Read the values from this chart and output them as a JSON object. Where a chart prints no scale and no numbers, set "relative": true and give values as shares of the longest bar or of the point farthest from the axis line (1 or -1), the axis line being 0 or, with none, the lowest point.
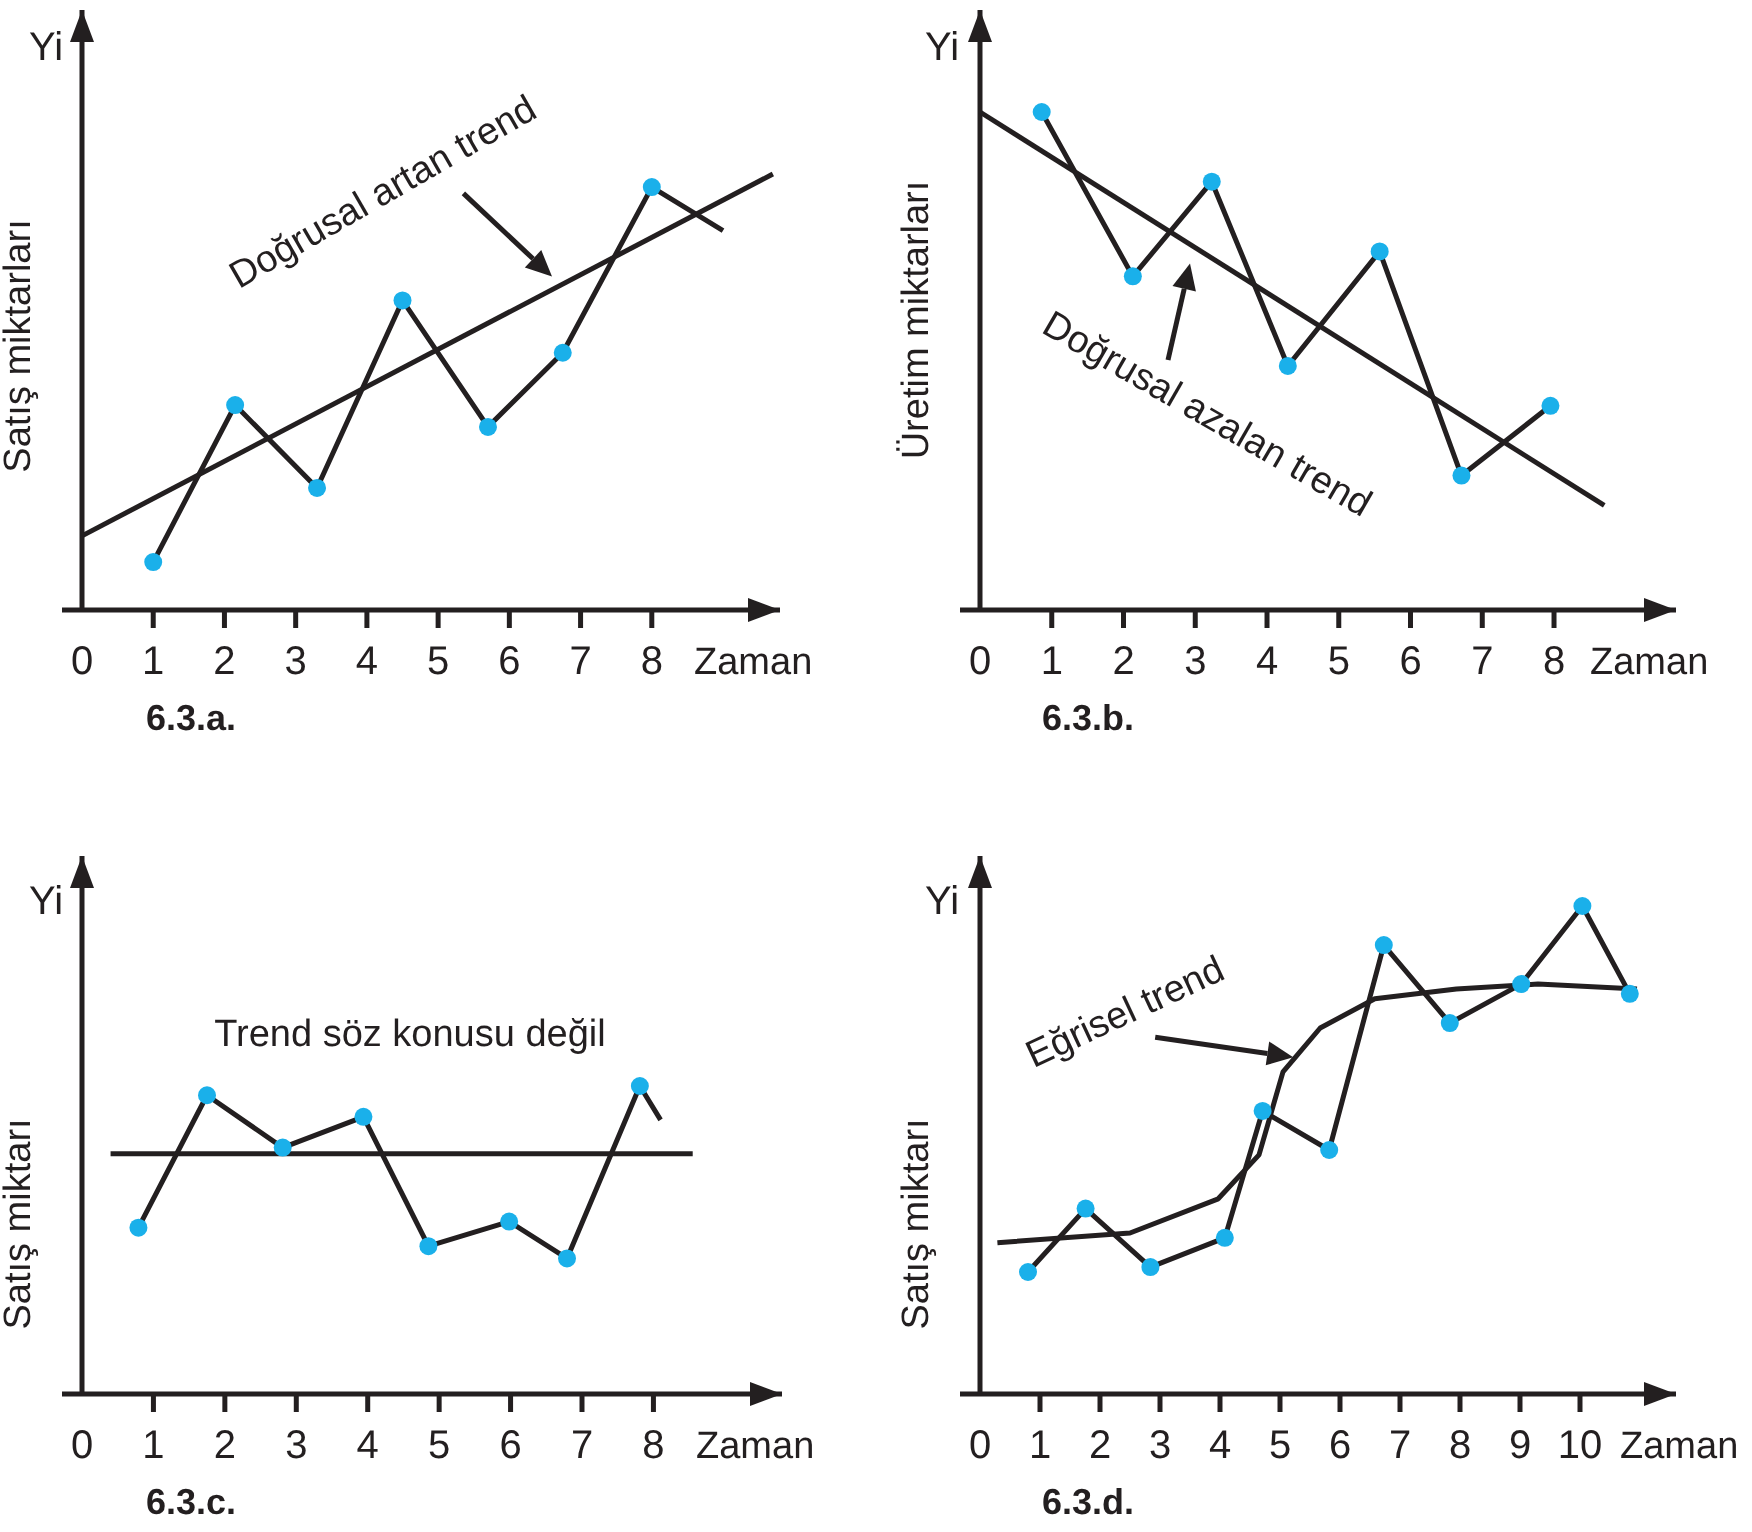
{
  "chart_data": [
    {
      "type": "line",
      "title": "6.3.a.",
      "xlabel": "Zaman",
      "ylabel": "Satış miktarları",
      "annotations": [
        "Yi",
        "Doğrusal artan trend"
      ],
      "relative": true,
      "xlim": [
        0,
        9.8
      ],
      "xticks": [
        0,
        1,
        2,
        3,
        4,
        5,
        6,
        7,
        8
      ],
      "marker": "circle",
      "series": [
        {
          "marker": "none",
          "color": "#231f20",
          "x": [
            1,
            2.15,
            3.3,
            4.5,
            5.7,
            6.75,
            8,
            9
          ],
          "values": [
            0.11,
            0.47,
            0.28,
            0.71,
            0.42,
            0.59,
            0.97,
            0.87
          ]
        },
        {
          "marker": "none",
          "color": "#231f20",
          "x": [
            0,
            9.7
          ],
          "values": [
            0.17,
            1.0
          ]
        },
        {
          "type": "scatter",
          "color": "#1ab0ea",
          "x": [
            1,
            2.15,
            3.3,
            4.5,
            5.7,
            6.75,
            8
          ],
          "values": [
            0.11,
            0.47,
            0.28,
            0.71,
            0.42,
            0.59,
            0.97
          ]
        }
      ]
    },
    {
      "type": "line",
      "title": "6.3.b.",
      "xlabel": "Zaman",
      "ylabel": "Üretim miktarları",
      "annotations": [
        "Yi",
        "Doğrusal azalan trend"
      ],
      "relative": true,
      "xlim": [
        0,
        9.7
      ],
      "xticks": [
        0,
        1,
        2,
        3,
        4,
        5,
        6,
        7,
        8
      ],
      "marker": "circle",
      "series": [
        {
          "marker": "none",
          "color": "#231f20",
          "x": [
            0.86,
            2.13,
            3.23,
            4.29,
            5.57,
            6.71,
            7.95
          ],
          "values": [
            1.0,
            0.67,
            0.86,
            0.49,
            0.72,
            0.27,
            0.41
          ]
        },
        {
          "marker": "none",
          "color": "#231f20",
          "x": [
            0,
            8.7
          ],
          "values": [
            1.0,
            0.21
          ]
        },
        {
          "type": "scatter",
          "color": "#1ab0ea",
          "x": [
            0.86,
            2.13,
            3.23,
            4.29,
            5.57,
            6.71,
            7.95
          ],
          "values": [
            1.0,
            0.67,
            0.86,
            0.49,
            0.72,
            0.27,
            0.41
          ]
        }
      ]
    },
    {
      "type": "line",
      "title": "6.3.c.",
      "xlabel": "Zaman",
      "ylabel": "Satış miktarı",
      "annotations": [
        "Yi",
        "Trend söz konusu değil"
      ],
      "relative": true,
      "xlim": [
        0,
        9.8
      ],
      "xticks": [
        0,
        1,
        2,
        3,
        4,
        5,
        6,
        7,
        8
      ],
      "marker": "circle",
      "series": [
        {
          "marker": "none",
          "color": "#231f20",
          "x": [
            0.79,
            1.75,
            2.81,
            3.94,
            4.85,
            5.98,
            6.79,
            7.81,
            8.1
          ],
          "values": [
            0.54,
            0.97,
            0.8,
            0.9,
            0.48,
            0.56,
            0.44,
            1.0,
            0.89
          ]
        },
        {
          "marker": "none",
          "color": "#231f20",
          "x": [
            0.4,
            8.55
          ],
          "values": [
            0.78,
            0.78
          ]
        },
        {
          "type": "scatter",
          "color": "#1ab0ea",
          "x": [
            0.79,
            1.75,
            2.81,
            3.94,
            4.85,
            5.98,
            6.79,
            7.81
          ],
          "values": [
            0.54,
            0.97,
            0.8,
            0.9,
            0.48,
            0.56,
            0.44,
            1.0
          ]
        }
      ]
    },
    {
      "type": "line",
      "title": "6.3.d.",
      "xlabel": "Zaman",
      "ylabel": "Satış miktarı",
      "annotations": [
        "Yi",
        "Eğrisel trend"
      ],
      "relative": true,
      "xlim": [
        0,
        11.6
      ],
      "xticks": [
        0,
        1,
        2,
        3,
        4,
        5,
        6,
        7,
        8,
        9,
        10
      ],
      "marker": "circle",
      "series": [
        {
          "marker": "none",
          "color": "#231f20",
          "x": [
            0.8,
            1.76,
            2.84,
            4.08,
            4.71,
            5.82,
            6.73,
            7.83,
            9.02,
            10.04,
            10.83
          ],
          "values": [
            0.25,
            0.38,
            0.26,
            0.32,
            0.58,
            0.5,
            0.92,
            0.76,
            0.84,
            1.0,
            0.82
          ]
        },
        {
          "marker": "none",
          "color": "#231f20",
          "x": [
            0.29,
            2.5,
            3.97,
            4.65,
            5.05,
            5.67,
            6.58,
            7.94,
            9.3,
            10.95
          ],
          "values": [
            0.31,
            0.33,
            0.4,
            0.49,
            0.66,
            0.75,
            0.81,
            0.83,
            0.84,
            0.83
          ]
        },
        {
          "type": "scatter",
          "color": "#1ab0ea",
          "x": [
            0.8,
            1.76,
            2.84,
            4.08,
            4.71,
            5.82,
            6.73,
            7.83,
            9.02,
            10.04,
            10.83
          ],
          "values": [
            0.25,
            0.38,
            0.26,
            0.32,
            0.58,
            0.5,
            0.92,
            0.76,
            0.84,
            1.0,
            0.82
          ]
        }
      ]
    }
  ]
}
